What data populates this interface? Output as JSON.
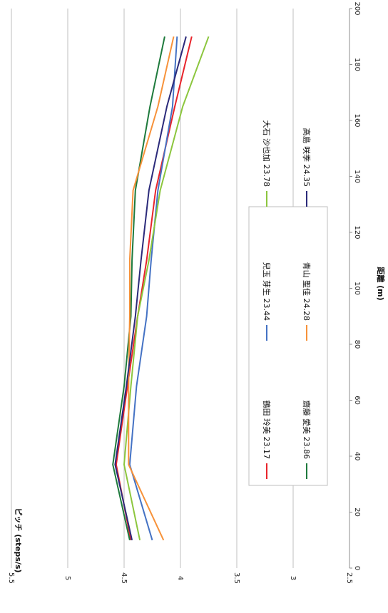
{
  "chart_data": {
    "type": "line",
    "xlabel": "距離 (m)",
    "ylabel": "ピッチ (steps/s)",
    "xlim": [
      0,
      200
    ],
    "ylim": [
      2.5,
      5.5
    ],
    "x_ticks": [
      "0",
      "20",
      "40",
      "60",
      "80",
      "100",
      "120",
      "140",
      "160",
      "180",
      "200"
    ],
    "y_ticks": [
      "2.5",
      "3",
      "3.5",
      "4",
      "4.5",
      "5",
      "5.5"
    ],
    "grid": true,
    "orientation": "rotated-90-clockwise",
    "legend_position": "inside-right",
    "x": [
      10,
      37,
      65,
      90,
      110,
      135,
      165,
      190
    ],
    "series": [
      {
        "name": "鶴田 玲美 23.17",
        "color": "#e8242b",
        "values": [
          4.44,
          4.57,
          4.47,
          4.38,
          4.3,
          4.22,
          4.05,
          3.9
        ]
      },
      {
        "name": "兒玉 芽生 23.44",
        "color": "#4472c4",
        "values": [
          4.25,
          4.45,
          4.39,
          4.3,
          4.26,
          4.2,
          4.07,
          4.03
        ]
      },
      {
        "name": "大石 沙也加 23.78",
        "color": "#8cc63e",
        "values": [
          4.36,
          4.5,
          4.44,
          4.38,
          4.28,
          4.18,
          3.98,
          3.75
        ]
      },
      {
        "name": "齋藤 愛美 23.86",
        "color": "#1e7a3c",
        "values": [
          4.45,
          4.6,
          4.5,
          4.44,
          4.43,
          4.4,
          4.27,
          4.14
        ]
      },
      {
        "name": "青山 聖佳 24.28",
        "color": "#f7923a",
        "values": [
          4.15,
          4.46,
          4.46,
          4.45,
          4.45,
          4.42,
          4.2,
          4.06
        ]
      },
      {
        "name": "高島 咲季 24.35",
        "color": "#2b2a7a",
        "values": [
          4.43,
          4.58,
          4.48,
          4.4,
          4.35,
          4.28,
          4.12,
          3.95
        ]
      }
    ]
  }
}
